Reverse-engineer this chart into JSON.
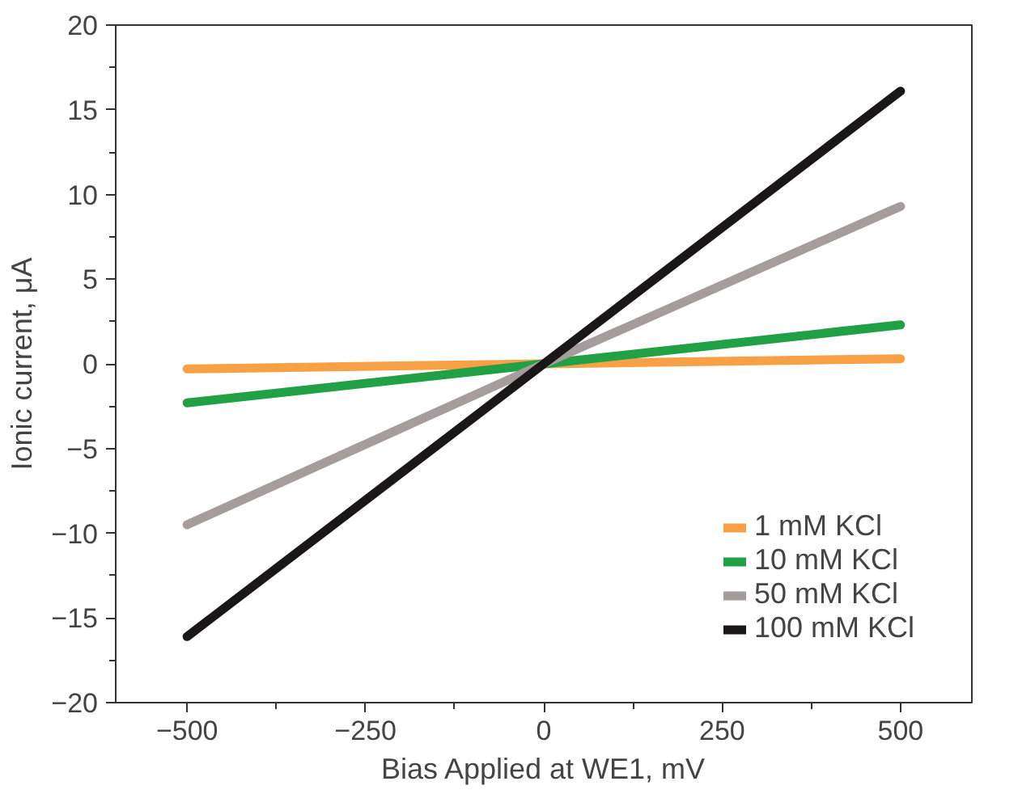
{
  "chart_data": {
    "type": "line",
    "xlabel": "Bias Applied at WE1, mV",
    "ylabel": "Ionic current, μA",
    "x": [
      -500,
      0,
      500
    ],
    "series": [
      {
        "name": "1 mM KCl",
        "color": "#f7a045",
        "values": [
          -0.3,
          0,
          0.3
        ]
      },
      {
        "name": "10 mM KCl",
        "color": "#22a046",
        "values": [
          -2.3,
          0,
          2.3
        ]
      },
      {
        "name": "50 mM KCl",
        "color": "#a59d9b",
        "values": [
          -9.5,
          0,
          9.3
        ]
      },
      {
        "name": "100 mM KCl",
        "color": "#1a1718",
        "values": [
          -16.1,
          0,
          16.1
        ]
      }
    ],
    "xlim": [
      -600,
      600
    ],
    "ylim": [
      -20,
      20
    ],
    "xticks": [
      -500,
      -250,
      0,
      250,
      500
    ],
    "yticks": [
      -20,
      -15,
      -10,
      -5,
      0,
      5,
      10,
      15,
      20
    ],
    "grid": false,
    "legend": "bottom right",
    "marker": "none",
    "line_style": "solid"
  }
}
